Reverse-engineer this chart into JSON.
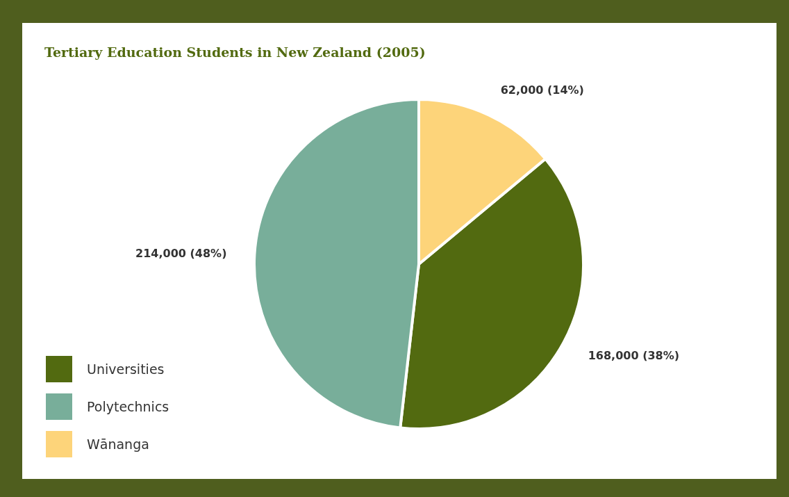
{
  "chart_data": {
    "type": "pie",
    "title": "Tertiary Education Students in New Zealand (2005)",
    "categories": [
      "Universities",
      "Polytechnics",
      "Wānanga"
    ],
    "values": [
      168000,
      214000,
      62000
    ],
    "colors": [
      "#526a10",
      "#78ae9a",
      "#fdd47a"
    ],
    "value_labels": [
      "168,000 (38%)",
      "214,000 (48%)",
      "62,000 (14%)"
    ],
    "legend": "bottom left"
  }
}
